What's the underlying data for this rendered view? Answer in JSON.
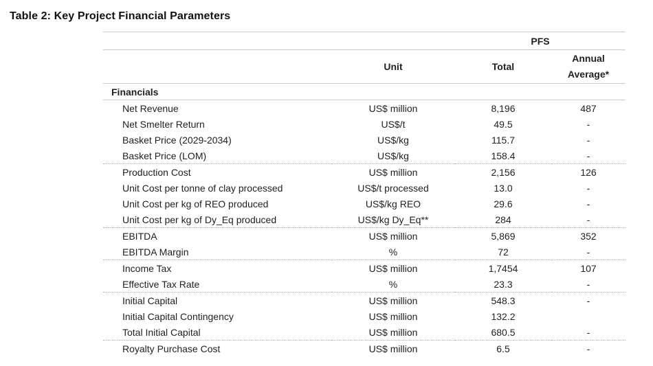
{
  "title": "Table 2: Key Project Financial Parameters",
  "table": {
    "span_header": "PFS",
    "columns": {
      "unit": "Unit",
      "total": "Total",
      "annual": "Annual Average*"
    },
    "section": "Financials",
    "groups": [
      {
        "rows": [
          {
            "label": "Net Revenue",
            "unit": "US$ million",
            "total": "8,196",
            "annual": "487"
          },
          {
            "label": "Net Smelter Return",
            "unit": "US$/t",
            "total": "49.5",
            "annual": "-"
          },
          {
            "label": "Basket Price (2029-2034)",
            "unit": "US$/kg",
            "total": "115.7",
            "annual": "-"
          },
          {
            "label": "Basket Price (LOM)",
            "unit": "US$/kg",
            "total": "158.4",
            "annual": "-"
          }
        ]
      },
      {
        "rows": [
          {
            "label": "Production Cost",
            "unit": "US$ million",
            "total": "2,156",
            "annual": "126"
          },
          {
            "label": "Unit Cost per tonne of clay processed",
            "unit": "US$/t processed",
            "total": "13.0",
            "annual": "-"
          },
          {
            "label": "Unit Cost per kg of REO produced",
            "unit": "US$/kg REO",
            "total": "29.6",
            "annual": "-"
          },
          {
            "label": "Unit Cost per kg of Dy_Eq produced",
            "unit": "US$/kg Dy_Eq**",
            "total": "284",
            "annual": "-"
          }
        ]
      },
      {
        "rows": [
          {
            "label": "EBITDA",
            "unit": "US$ million",
            "total": "5,869",
            "annual": "352"
          },
          {
            "label": "EBITDA Margin",
            "unit": "%",
            "total": "72",
            "annual": "-"
          }
        ]
      },
      {
        "rows": [
          {
            "label": "Income Tax",
            "unit": "US$ million",
            "total": "1,7454",
            "annual": "107"
          },
          {
            "label": "Effective Tax Rate",
            "unit": "%",
            "total": "23.3",
            "annual": "-"
          }
        ]
      },
      {
        "rows": [
          {
            "label": "Initial Capital",
            "unit": "US$ million",
            "total": "548.3",
            "annual": "-"
          },
          {
            "label": "Initial Capital Contingency",
            "unit": "US$ million",
            "total": "132.2",
            "annual": ""
          },
          {
            "label": "Total Initial Capital",
            "unit": "US$ million",
            "total": "680.5",
            "annual": "-"
          }
        ]
      },
      {
        "rows": [
          {
            "label": "Royalty Purchase Cost",
            "unit": "US$ million",
            "total": "6.5",
            "annual": "-"
          }
        ]
      }
    ]
  }
}
